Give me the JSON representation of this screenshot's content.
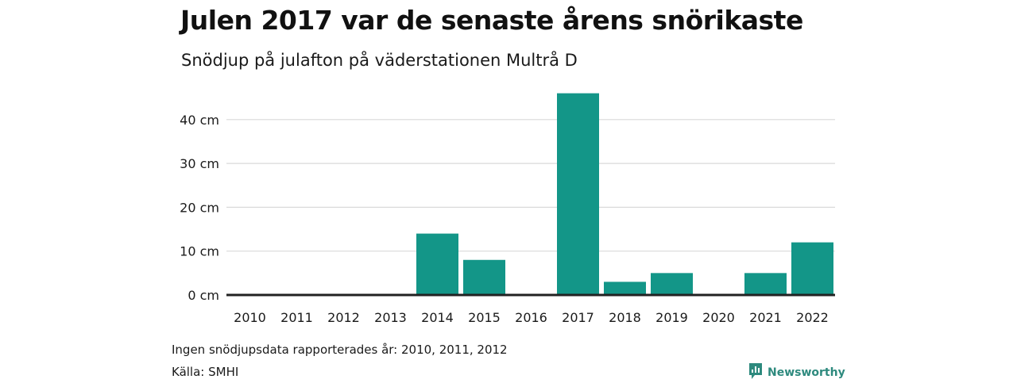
{
  "header": {
    "title": "Julen 2017 var de senaste årens snörikaste",
    "subtitle": "Snödjup på julafton på väderstationen Multrå D"
  },
  "footer": {
    "note": "Ingen snödjupsdata rapporterades år: 2010, 2011, 2012",
    "source": "Källa: SMHI",
    "brand": "Newsworthy",
    "brand_icon": "newsworthy-logo-icon"
  },
  "colors": {
    "bar": "#139688",
    "grid": "#d9d9d9",
    "baseline": "#222222",
    "brand": "#2e8a7e"
  },
  "chart_data": {
    "type": "bar",
    "title": "Julen 2017 var de senaste årens snörikaste",
    "subtitle": "Snödjup på julafton på väderstationen Multrå D",
    "xlabel": "",
    "ylabel": "",
    "categories": [
      "2010",
      "2011",
      "2012",
      "2013",
      "2014",
      "2015",
      "2016",
      "2017",
      "2018",
      "2019",
      "2020",
      "2021",
      "2022"
    ],
    "series": [
      {
        "values": [
          0,
          0,
          0,
          0,
          14,
          8,
          0,
          46,
          3,
          5,
          0,
          5,
          12
        ]
      }
    ],
    "ylim": [
      0,
      48
    ],
    "yticks": [
      0,
      10,
      20,
      30,
      40
    ],
    "ytick_labels": [
      "0 cm",
      "10 cm",
      "20 cm",
      "30 cm",
      "40 cm"
    ],
    "grid": true,
    "legend": "none"
  }
}
